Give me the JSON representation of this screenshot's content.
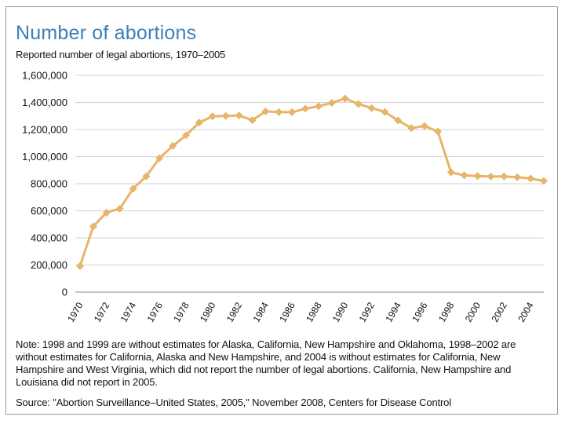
{
  "chart_data": {
    "type": "line",
    "title": "Number of abortions",
    "subtitle": "Reported number of legal abortions, 1970–2005",
    "xlabel": "",
    "ylabel": "",
    "ylim": [
      0,
      1600000
    ],
    "yticks": [
      "1,600,000",
      "1,400,000",
      "1,200,000",
      "1,000,000",
      "800,000",
      "600,000",
      "400,000",
      "200,000",
      "0"
    ],
    "ytick_values": [
      1600000,
      1400000,
      1200000,
      1000000,
      800000,
      600000,
      400000,
      200000,
      0
    ],
    "xtick_labels": [
      "1970",
      "1972",
      "1974",
      "1976",
      "1978",
      "1980",
      "1982",
      "1984",
      "1986",
      "1988",
      "1990",
      "1992",
      "1994",
      "1996",
      "1998",
      "2000",
      "2002",
      "2004"
    ],
    "grid": "horizontal",
    "series_color": "#e8b46a",
    "series": [
      {
        "name": "Reported legal abortions",
        "x": [
          1970,
          1971,
          1972,
          1973,
          1974,
          1975,
          1976,
          1977,
          1978,
          1979,
          1980,
          1981,
          1982,
          1983,
          1984,
          1985,
          1986,
          1987,
          1988,
          1989,
          1990,
          1991,
          1992,
          1993,
          1994,
          1995,
          1996,
          1997,
          1998,
          1999,
          2000,
          2001,
          2002,
          2003,
          2004,
          2005
        ],
        "values": [
          193000,
          485000,
          587000,
          616000,
          763000,
          855000,
          989000,
          1079000,
          1158000,
          1252000,
          1298000,
          1301000,
          1304000,
          1269000,
          1334000,
          1329000,
          1328000,
          1354000,
          1372000,
          1397000,
          1429000,
          1389000,
          1359000,
          1330000,
          1267000,
          1211000,
          1226000,
          1186000,
          884000,
          862000,
          857000,
          853000,
          854000,
          848000,
          839000,
          820000
        ]
      }
    ]
  },
  "note": "Note: 1998 and 1999 are without estimates for Alaska, California, New Hampshire and Oklahoma, 1998–2002 are without estimates for California, Alaska and New Hampshire, and 2004 is without estimates for California, New Hampshire and West Virginia, which did not report the number of legal abortions. California, New Hampshire and Louisiana did not report in 2005.",
  "source": "Source: \"Abortion Surveillance–United States, 2005,\" November 2008, Centers for Disease Control"
}
